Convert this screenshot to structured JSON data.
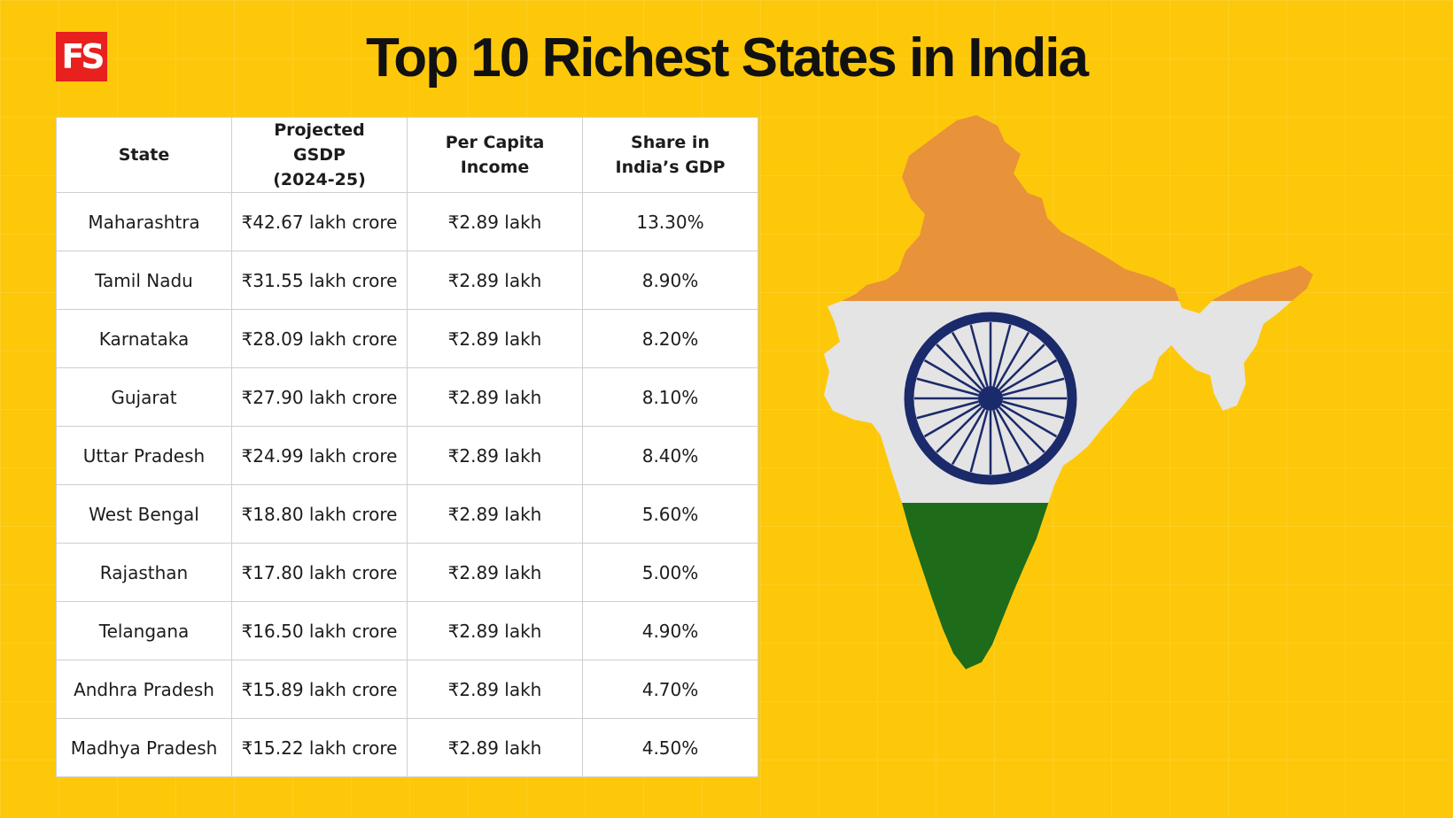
{
  "brand": {
    "logo_text": "FS",
    "logo_color": "#e8201e"
  },
  "title": "Top 10 Richest States in India",
  "colors": {
    "background": "#fdc80a",
    "saffron": "#e8923a",
    "white": "#e6e6e6",
    "green": "#1e6b1a",
    "chakra": "#1b2a6b"
  },
  "chart_data": {
    "type": "table",
    "title": "Top 10 Richest States in India",
    "columns": [
      "State",
      "Projected GSDP (2024-25)",
      "Per Capita Income",
      "Share in India’s GDP"
    ],
    "rows": [
      [
        "Maharashtra",
        "₹42.67 lakh crore",
        "₹2.89 lakh",
        "13.30%"
      ],
      [
        "Tamil Nadu",
        "₹31.55 lakh crore",
        "₹2.89 lakh",
        "8.90%"
      ],
      [
        "Karnataka",
        "₹28.09 lakh crore",
        "₹2.89 lakh",
        "8.20%"
      ],
      [
        "Gujarat",
        "₹27.90 lakh crore",
        "₹2.89 lakh",
        "8.10%"
      ],
      [
        "Uttar Pradesh",
        "₹24.99 lakh crore",
        "₹2.89 lakh",
        "8.40%"
      ],
      [
        "West Bengal",
        "₹18.80 lakh crore",
        "₹2.89 lakh",
        "5.60%"
      ],
      [
        "Rajasthan",
        "₹17.80 lakh crore",
        "₹2.89 lakh",
        "5.00%"
      ],
      [
        "Telangana",
        "₹16.50 lakh crore",
        "₹2.89 lakh",
        "4.90%"
      ],
      [
        "Andhra Pradesh",
        "₹15.89 lakh crore",
        "₹2.89 lakh",
        "4.70%"
      ],
      [
        "Madhya Pradesh",
        "₹15.22 lakh crore",
        "₹2.89 lakh",
        "4.50%"
      ]
    ]
  },
  "illustration": {
    "icon": "india-map-flag-icon"
  }
}
